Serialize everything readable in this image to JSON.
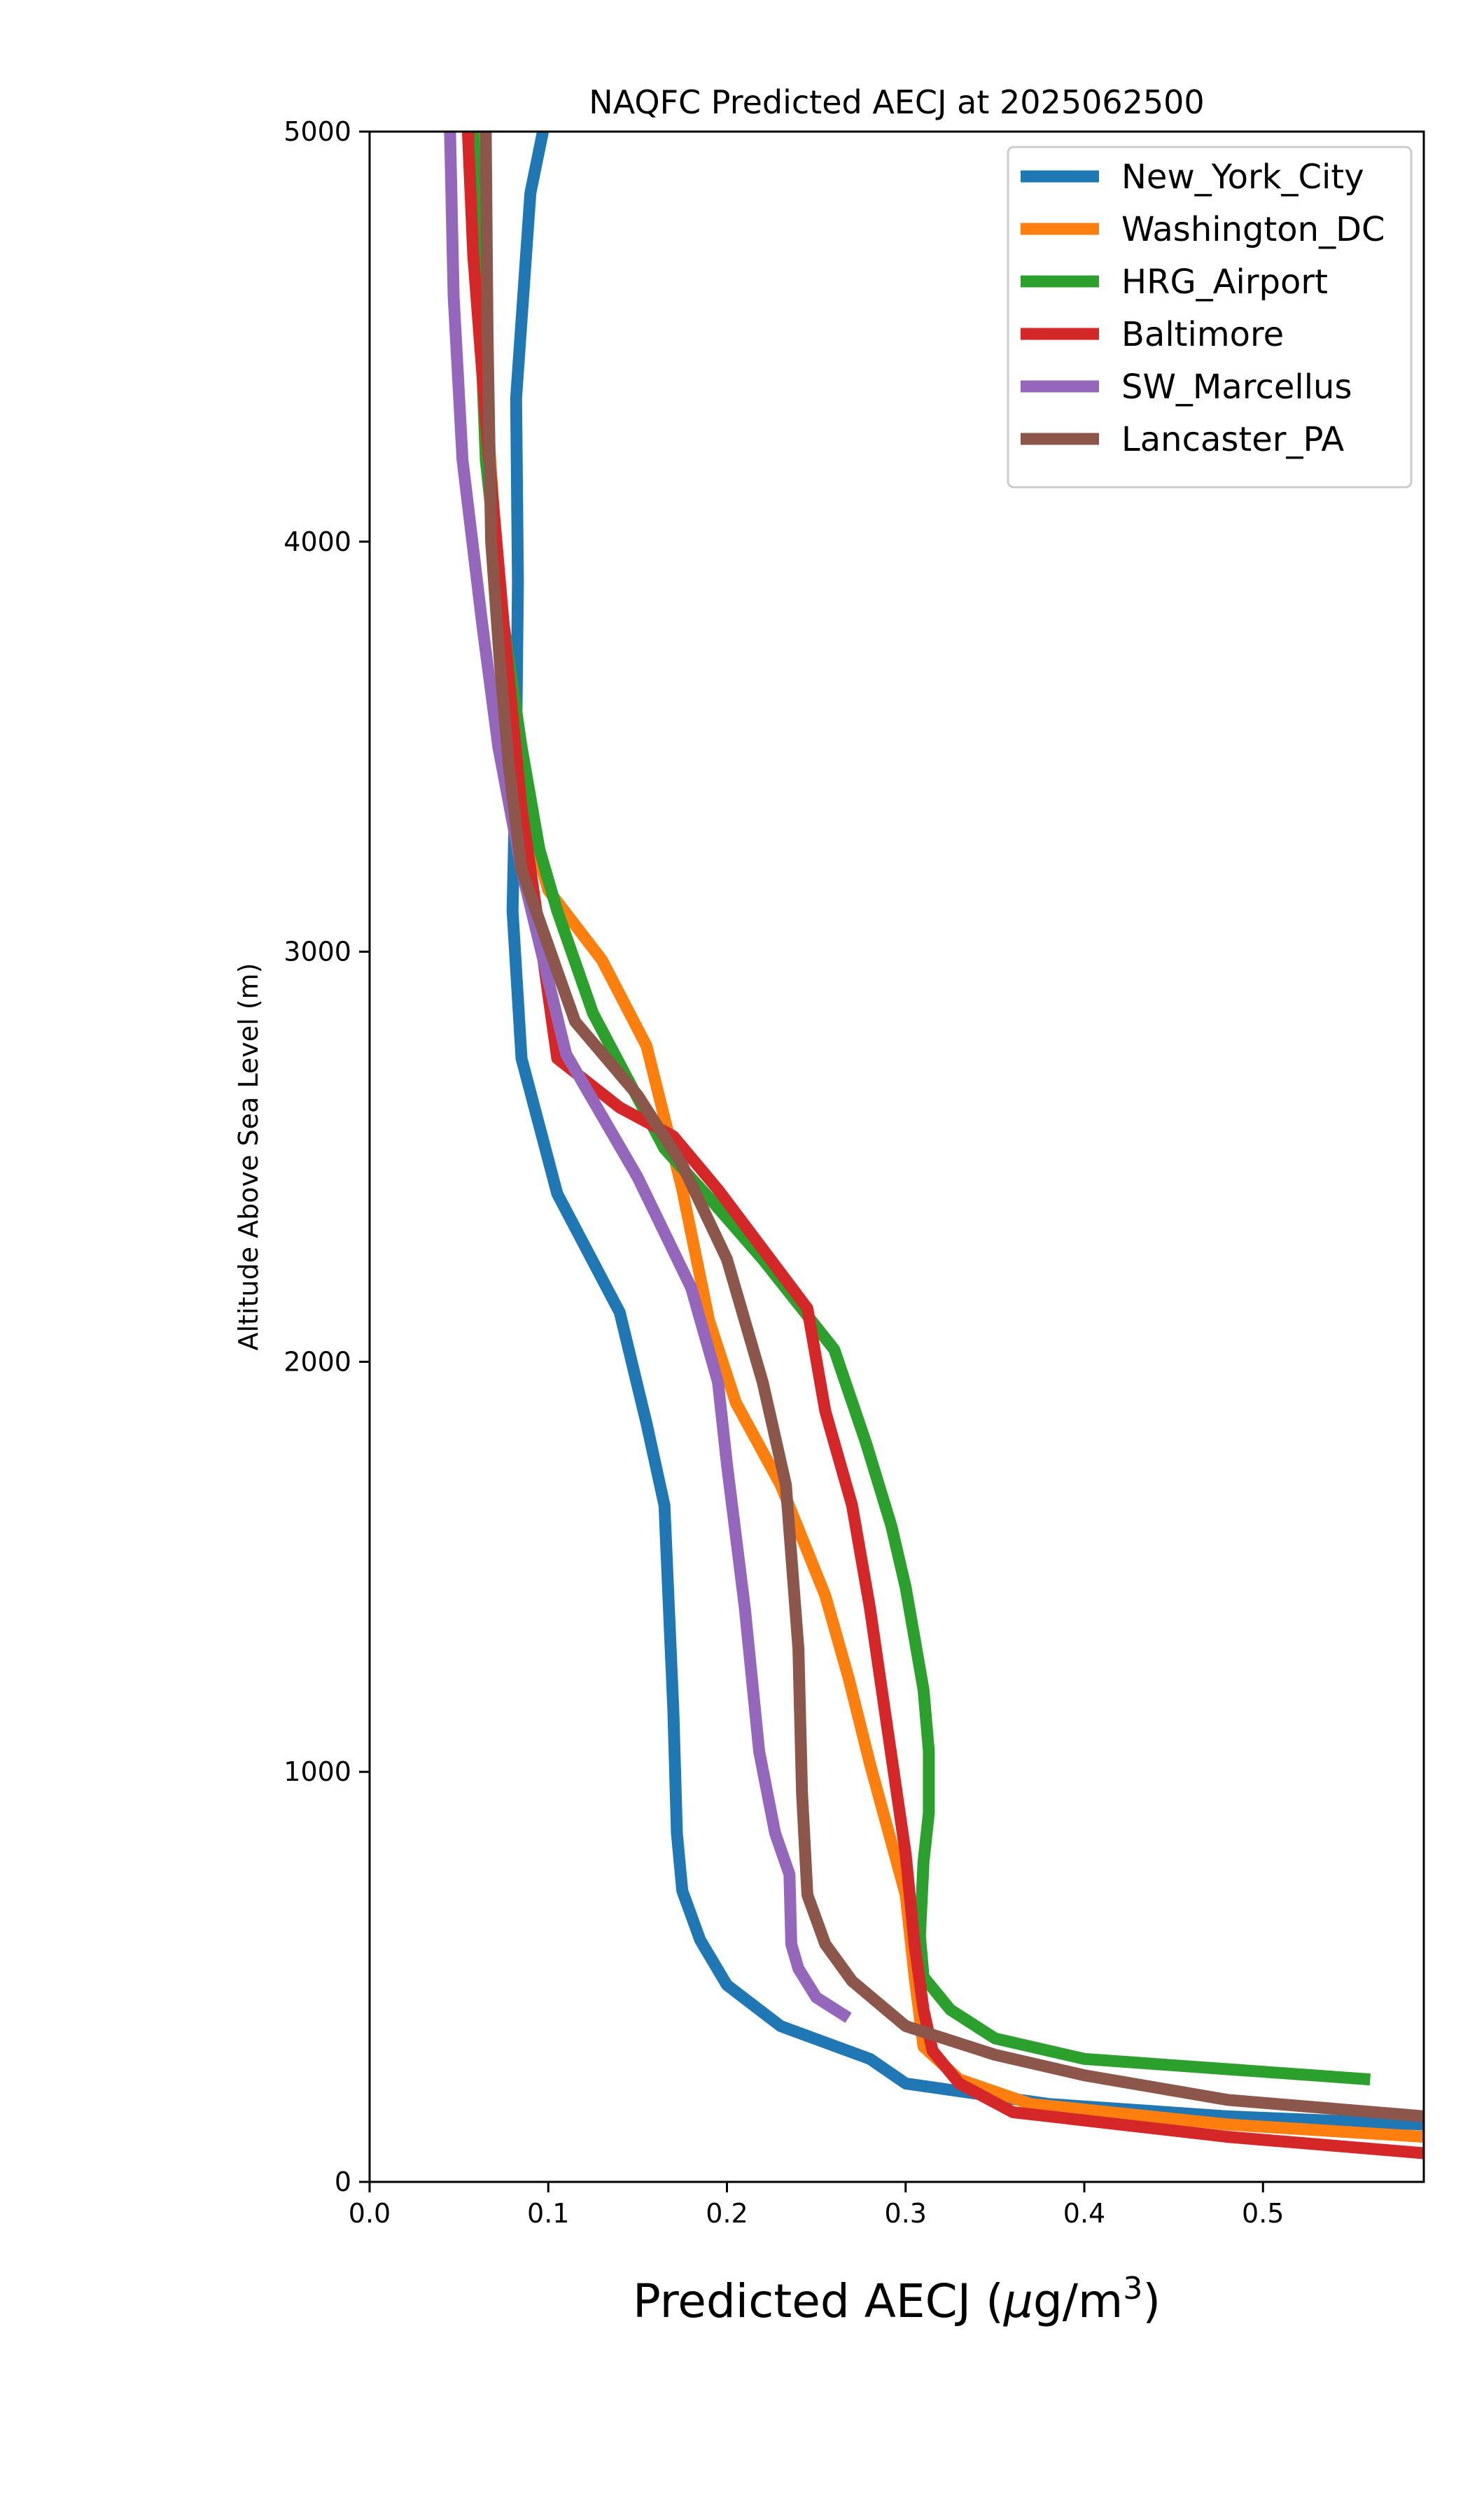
{
  "chart_data": {
    "type": "line",
    "title": "NAQFC Predicted AECJ at 2025062500",
    "xlabel": "Predicted AECJ (μg/m³)",
    "xlabel_parts": {
      "prefix": "Predicted AECJ (",
      "mu": "μ",
      "unit": "g/m",
      "sup": "3",
      "suffix": ")"
    },
    "ylabel": "Altitude Above Sea Level (m)",
    "xlim": [
      0.0,
      0.59
    ],
    "ylim": [
      0,
      5000
    ],
    "xticks": [
      "0.0",
      "0.1",
      "0.2",
      "0.3",
      "0.4",
      "0.5"
    ],
    "xtick_values": [
      0.0,
      0.1,
      0.2,
      0.3,
      0.4,
      0.5
    ],
    "yticks": [
      "0",
      "1000",
      "2000",
      "3000",
      "4000",
      "5000"
    ],
    "ytick_values": [
      0,
      1000,
      2000,
      3000,
      4000,
      5000
    ],
    "grid": false,
    "legend_position": "top-right",
    "series": [
      {
        "name": "New_York_City",
        "color": "#1f77b4",
        "points": [
          [
            0.59,
            140
          ],
          [
            0.48,
            160
          ],
          [
            0.38,
            190
          ],
          [
            0.3,
            240
          ],
          [
            0.28,
            300
          ],
          [
            0.23,
            380
          ],
          [
            0.2,
            480
          ],
          [
            0.185,
            590
          ],
          [
            0.175,
            710
          ],
          [
            0.172,
            850
          ],
          [
            0.17,
            1150
          ],
          [
            0.165,
            1650
          ],
          [
            0.155,
            1850
          ],
          [
            0.14,
            2120
          ],
          [
            0.105,
            2410
          ],
          [
            0.085,
            2740
          ],
          [
            0.08,
            3100
          ],
          [
            0.082,
            3500
          ],
          [
            0.083,
            3900
          ],
          [
            0.082,
            4350
          ],
          [
            0.09,
            4850
          ],
          [
            0.097,
            5000
          ]
        ]
      },
      {
        "name": "Washington_DC",
        "color": "#ff7f0e",
        "points": [
          [
            0.59,
            110
          ],
          [
            0.48,
            140
          ],
          [
            0.37,
            190
          ],
          [
            0.33,
            250
          ],
          [
            0.31,
            330
          ],
          [
            0.305,
            500
          ],
          [
            0.3,
            700
          ],
          [
            0.28,
            1020
          ],
          [
            0.268,
            1230
          ],
          [
            0.255,
            1430
          ],
          [
            0.23,
            1700
          ],
          [
            0.205,
            1900
          ],
          [
            0.19,
            2100
          ],
          [
            0.175,
            2420
          ],
          [
            0.155,
            2770
          ],
          [
            0.13,
            2980
          ],
          [
            0.1,
            3150
          ],
          [
            0.08,
            3450
          ],
          [
            0.072,
            3900
          ],
          [
            0.066,
            4300
          ],
          [
            0.062,
            5000
          ]
        ]
      },
      {
        "name": "HRG_Airport",
        "color": "#2ca02c",
        "points": [
          [
            0.56,
            250
          ],
          [
            0.4,
            300
          ],
          [
            0.35,
            350
          ],
          [
            0.325,
            420
          ],
          [
            0.31,
            500
          ],
          [
            0.308,
            600
          ],
          [
            0.31,
            780
          ],
          [
            0.313,
            900
          ],
          [
            0.313,
            1050
          ],
          [
            0.31,
            1200
          ],
          [
            0.3,
            1450
          ],
          [
            0.292,
            1600
          ],
          [
            0.278,
            1800
          ],
          [
            0.26,
            2030
          ],
          [
            0.22,
            2250
          ],
          [
            0.19,
            2400
          ],
          [
            0.165,
            2520
          ],
          [
            0.125,
            2850
          ],
          [
            0.105,
            3100
          ],
          [
            0.095,
            3250
          ],
          [
            0.085,
            3500
          ],
          [
            0.075,
            3800
          ],
          [
            0.065,
            4200
          ],
          [
            0.058,
            5000
          ]
        ]
      },
      {
        "name": "Baltimore",
        "color": "#d62728",
        "points": [
          [
            0.59,
            70
          ],
          [
            0.48,
            110
          ],
          [
            0.36,
            170
          ],
          [
            0.33,
            240
          ],
          [
            0.315,
            320
          ],
          [
            0.31,
            420
          ],
          [
            0.305,
            580
          ],
          [
            0.3,
            800
          ],
          [
            0.29,
            1100
          ],
          [
            0.28,
            1400
          ],
          [
            0.27,
            1650
          ],
          [
            0.255,
            1880
          ],
          [
            0.245,
            2130
          ],
          [
            0.195,
            2420
          ],
          [
            0.17,
            2550
          ],
          [
            0.14,
            2620
          ],
          [
            0.105,
            2740
          ],
          [
            0.095,
            3050
          ],
          [
            0.085,
            3350
          ],
          [
            0.075,
            3800
          ],
          [
            0.065,
            4300
          ],
          [
            0.058,
            4700
          ],
          [
            0.055,
            5000
          ]
        ]
      },
      {
        "name": "SW_Marcellus",
        "color": "#9467bd",
        "points": [
          [
            0.268,
            400
          ],
          [
            0.25,
            450
          ],
          [
            0.24,
            520
          ],
          [
            0.236,
            580
          ],
          [
            0.235,
            750
          ],
          [
            0.227,
            850
          ],
          [
            0.218,
            1050
          ],
          [
            0.21,
            1400
          ],
          [
            0.2,
            1750
          ],
          [
            0.195,
            1950
          ],
          [
            0.18,
            2180
          ],
          [
            0.15,
            2450
          ],
          [
            0.11,
            2750
          ],
          [
            0.085,
            3200
          ],
          [
            0.072,
            3500
          ],
          [
            0.063,
            3800
          ],
          [
            0.052,
            4200
          ],
          [
            0.047,
            4600
          ],
          [
            0.045,
            5000
          ]
        ]
      },
      {
        "name": "Lancaster_PA",
        "color": "#8c564b",
        "points": [
          [
            0.59,
            160
          ],
          [
            0.48,
            200
          ],
          [
            0.4,
            260
          ],
          [
            0.35,
            310
          ],
          [
            0.3,
            380
          ],
          [
            0.27,
            490
          ],
          [
            0.255,
            580
          ],
          [
            0.245,
            700
          ],
          [
            0.242,
            950
          ],
          [
            0.24,
            1300
          ],
          [
            0.233,
            1700
          ],
          [
            0.22,
            1950
          ],
          [
            0.2,
            2250
          ],
          [
            0.175,
            2480
          ],
          [
            0.15,
            2650
          ],
          [
            0.115,
            2830
          ],
          [
            0.085,
            3200
          ],
          [
            0.078,
            3450
          ],
          [
            0.073,
            3700
          ],
          [
            0.068,
            4000
          ],
          [
            0.066,
            4500
          ],
          [
            0.065,
            5000
          ]
        ]
      }
    ]
  }
}
